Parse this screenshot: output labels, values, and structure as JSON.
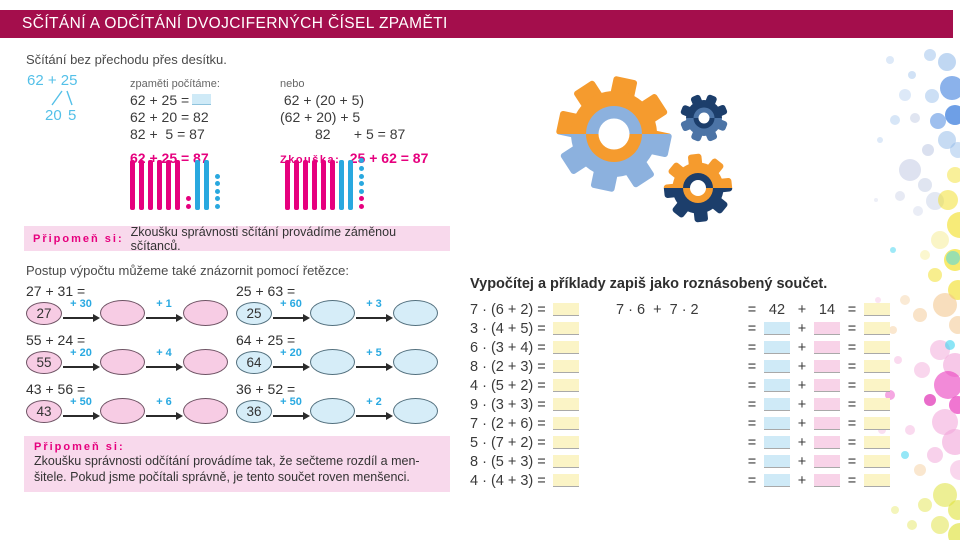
{
  "title": "SČÍTÁNÍ A ODČÍTÁNÍ DVOJCIFERNÝCH ČÍSEL ZPAMĚTI",
  "textbook": {
    "intro": "Sčítání bez přechodu přes desítku.",
    "decomposition": {
      "expr": "62 + 25",
      "p1": "20",
      "p2": "5"
    },
    "mental": {
      "label": "zpaměti počítáme:",
      "line1": "62 + 25 =",
      "line2": "62 + 20 = 82",
      "line3": "82 +  5 = 87",
      "result": "62 + 25 = 87"
    },
    "alt": {
      "label": "nebo",
      "line1": " 62 + (20 + 5)",
      "line2": "(62 + 20) + 5",
      "line3": "         82      + 5 = 87",
      "check_label": "Zkouška:",
      "check_value": "25 + 62 = 87"
    },
    "reminder1": {
      "label": "Připomeň si:",
      "text": "Zkoušku správnosti sčítání provádíme záměnou sčítanců."
    },
    "chain_intro": "Postup výpočtu můžeme také znázornit pomocí řetězce:",
    "chains": {
      "left": [
        {
          "equation": "27 + 31 =",
          "start": "27",
          "step1": "+ 30",
          "step2": "+ 1"
        },
        {
          "equation": "55 + 24 =",
          "start": "55",
          "step1": "+ 20",
          "step2": "+ 4"
        },
        {
          "equation": "43 + 56 =",
          "start": "43",
          "step1": "+ 50",
          "step2": "+ 6"
        }
      ],
      "right": [
        {
          "equation": "25 + 63 =",
          "start": "25",
          "step1": "+ 60",
          "step2": "+ 3"
        },
        {
          "equation": "64 + 25 =",
          "start": "64",
          "step1": "+ 20",
          "step2": "+ 5"
        },
        {
          "equation": "36 + 52 =",
          "start": "36",
          "step1": "+ 50",
          "step2": "+ 2"
        }
      ]
    },
    "tallies": {
      "left": [
        {
          "type": "bars",
          "color": "magenta",
          "count": 6
        },
        {
          "type": "dots",
          "colors": [
            "magenta",
            "magenta"
          ]
        },
        {
          "type": "bars",
          "color": "blue",
          "count": 2
        },
        {
          "type": "dots",
          "colors": [
            "blue",
            "blue",
            "blue",
            "blue",
            "blue"
          ]
        }
      ],
      "right": [
        {
          "type": "bars",
          "color": "magenta",
          "count": 6
        },
        {
          "type": "bars",
          "color": "blue",
          "count": 2
        },
        {
          "type": "dots",
          "colors": [
            "blue",
            "blue",
            "blue",
            "blue",
            "blue",
            "magenta",
            "magenta"
          ]
        }
      ]
    },
    "reminder2": {
      "label": "Připomeň si:",
      "line1": "Zkoušku správnosti odčítání provádíme tak, že sečteme rozdíl a men-",
      "line2": "šitele. Pokud jsme počítali správně, je tento součet roven menšenci."
    }
  },
  "worksheet": {
    "heading": "Vypočítej a příklady zapiš jako roznásobený součet.",
    "problems": [
      "7 · (6 + 2) =",
      "3 · (4 + 5) =",
      "6 · (3 + 4) =",
      "8 · (2 + 3) =",
      "4 · (5 + 2) =",
      "9 · (3 + 3) =",
      "7 · (2 + 6) =",
      "5 · (7 + 2) =",
      "8 · (5 + 3) =",
      "4 · (4 + 3) ="
    ],
    "example": {
      "lhs": "7 · 6  +  7 · 2",
      "v1": "42",
      "v2": "14"
    },
    "ops": {
      "eq": "=",
      "plus": "+"
    },
    "rows_total": 10
  },
  "colors": {
    "title_bar": "#A40E4C",
    "accent_magenta": "#E6007E",
    "tally_magenta": "#E6007E",
    "tally_blue": "#29A8DF",
    "chain_label_cyan": "#29A9E1",
    "decomp_blue": "#54C0E8",
    "pink_box": "#F8D9EC",
    "oval_pink": "#F7CCE4",
    "oval_blue": "#D6EDF8",
    "blank_yellow": "#FBF4C6",
    "blank_blue": "#CFEAF7",
    "blank_pink": "#F8D3E8",
    "gears": {
      "orange": "#F59B2E",
      "light_blue": "#8CB1DE",
      "navy": "#1C3E6B",
      "steel": "#4C74A6"
    },
    "bokeh_palette": {
      "blue1": "#8DB7E8",
      "blue2": "#3E7FDD",
      "lavender": "#C2CBE4",
      "yellow": "#F2DE1E",
      "pale_yellow": "#F7EFA0",
      "yellow_green": "#DFE23C",
      "orange": "#F2C286",
      "pink": "#F2A3D8",
      "magenta": "#E93CBE",
      "deep_pink": "#DB0AA6",
      "cyan": "#3ED4F0"
    }
  }
}
